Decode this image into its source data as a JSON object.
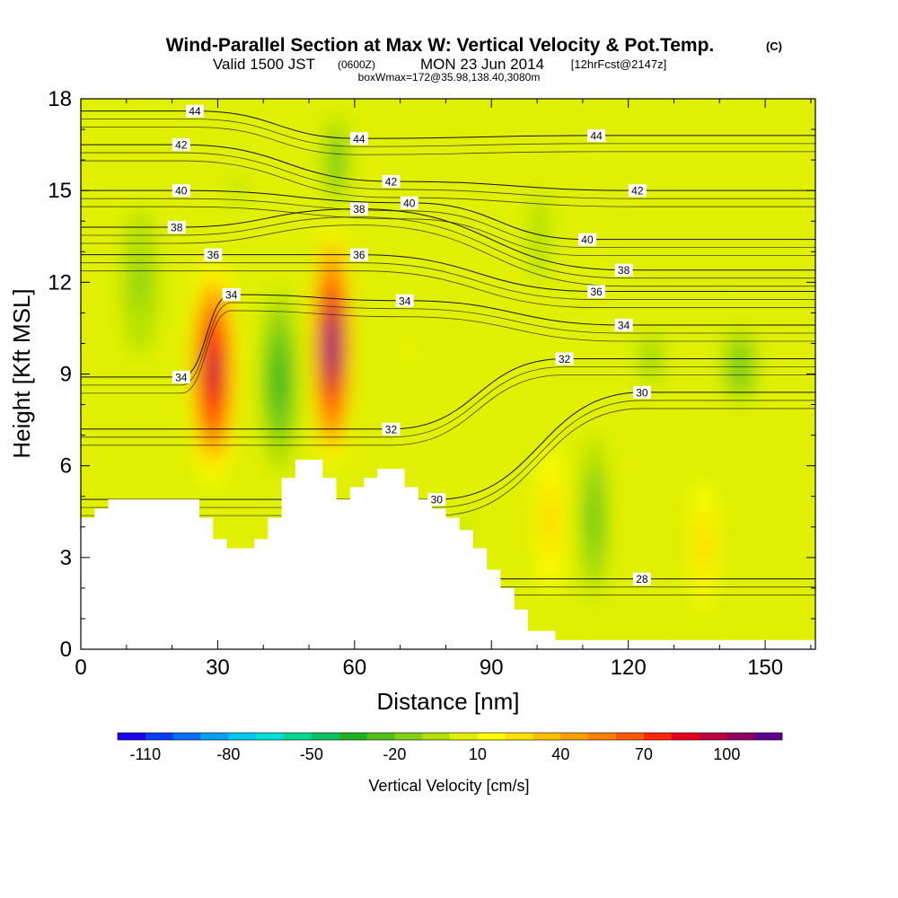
{
  "chart_data": {
    "type": "contour",
    "title": "Wind-Parallel Section at Max W: Vertical Velocity & Pot.Temp.",
    "title_suffix": "(C)",
    "subtitle_valid": "Valid 1500 JST",
    "subtitle_utc": "(0600Z)",
    "subtitle_date": "MON 23 Jun 2014",
    "subtitle_fcst": "[12hrFcst@2147z]",
    "subtitle_box": "boxWmax=172@35.98,138.40,3080m",
    "xlabel": "Distance [nm]",
    "ylabel": "Height [Kft MSL]",
    "xlim": [
      0,
      161
    ],
    "ylim": [
      0,
      18
    ],
    "x_ticks": [
      0,
      30,
      60,
      90,
      120,
      150
    ],
    "y_ticks": [
      0,
      3,
      6,
      9,
      12,
      15,
      18
    ],
    "colorbar": {
      "label": "Vertical Velocity [cm/s]",
      "tick_labels": [
        "-110",
        "-80",
        "-50",
        "-20",
        "10",
        "40",
        "70",
        "100"
      ],
      "tick_values": [
        -110,
        -80,
        -50,
        -20,
        10,
        40,
        70,
        100
      ],
      "min": -120,
      "step": 10,
      "colors": [
        "#1c00f0",
        "#0a3cf5",
        "#0a6ef5",
        "#04a0f0",
        "#00c8f0",
        "#00e0d8",
        "#00d890",
        "#10c060",
        "#20b020",
        "#50c018",
        "#80d018",
        "#b0e000",
        "#e0f000",
        "#ffff00",
        "#ffe000",
        "#ffc000",
        "#ffa000",
        "#ff8000",
        "#ff5800",
        "#ff2800",
        "#e80020",
        "#c00040",
        "#900060",
        "#600090"
      ]
    },
    "w_cells": [
      {
        "x": [
          23,
          35
        ],
        "y": [
          5.0,
          13.2
        ],
        "w": 95
      },
      {
        "x": [
          50,
          60
        ],
        "y": [
          5.6,
          14.2
        ],
        "w": 115
      },
      {
        "x": [
          38,
          49
        ],
        "y": [
          5.0,
          12.6
        ],
        "w": -40
      },
      {
        "x": [
          6,
          20
        ],
        "y": [
          8.0,
          16.0
        ],
        "w": -12
      },
      {
        "x": [
          29,
          40
        ],
        "y": [
          12.0,
          18.0
        ],
        "w": -8
      },
      {
        "x": [
          52,
          60
        ],
        "y": [
          14.0,
          18.0
        ],
        "w": -22
      },
      {
        "x": [
          99,
          107
        ],
        "y": [
          1.0,
          7.5
        ],
        "w": 38
      },
      {
        "x": [
          108,
          117
        ],
        "y": [
          0.6,
          8.0
        ],
        "w": -28
      },
      {
        "x": [
          133,
          140
        ],
        "y": [
          0.6,
          6.2
        ],
        "w": 34
      },
      {
        "x": [
          120,
          130
        ],
        "y": [
          8.0,
          11.0
        ],
        "w": -12
      },
      {
        "x": [
          139,
          150
        ],
        "y": [
          7.5,
          11.0
        ],
        "w": -20
      },
      {
        "x": [
          97,
          104
        ],
        "y": [
          11.0,
          16.0
        ],
        "w": -10
      },
      {
        "x": [
          69,
          76
        ],
        "y": [
          8.0,
          11.5
        ],
        "w": 16
      },
      {
        "x": [
          142,
          156
        ],
        "y": [
          15.0,
          18.0
        ],
        "w": 8
      },
      {
        "x": [
          77,
          90
        ],
        "y": [
          1.8,
          6.0
        ],
        "w": -6
      }
    ],
    "theta_labels": [
      {
        "value": 44,
        "x": 25,
        "y": 17.6
      },
      {
        "value": 44,
        "x": 61,
        "y": 16.7
      },
      {
        "value": 44,
        "x": 113,
        "y": 16.8
      },
      {
        "value": 42,
        "x": 22,
        "y": 16.5
      },
      {
        "value": 42,
        "x": 68,
        "y": 15.3
      },
      {
        "value": 42,
        "x": 122,
        "y": 15.0
      },
      {
        "value": 40,
        "x": 22,
        "y": 15.0
      },
      {
        "value": 40,
        "x": 72,
        "y": 14.6
      },
      {
        "value": 40,
        "x": 111,
        "y": 13.4
      },
      {
        "value": 38,
        "x": 21,
        "y": 13.8
      },
      {
        "value": 38,
        "x": 61,
        "y": 14.4
      },
      {
        "value": 38,
        "x": 119,
        "y": 12.4
      },
      {
        "value": 36,
        "x": 29,
        "y": 12.9
      },
      {
        "value": 36,
        "x": 61,
        "y": 12.9
      },
      {
        "value": 36,
        "x": 113,
        "y": 11.7
      },
      {
        "value": 34,
        "x": 33,
        "y": 11.6
      },
      {
        "value": 34,
        "x": 71,
        "y": 11.4
      },
      {
        "value": 34,
        "x": 119,
        "y": 10.6
      },
      {
        "value": 34,
        "x": 22,
        "y": 8.9
      },
      {
        "value": 32,
        "x": 106,
        "y": 9.5
      },
      {
        "value": 32,
        "x": 68,
        "y": 7.2
      },
      {
        "value": 30,
        "x": 123,
        "y": 8.4
      },
      {
        "value": 30,
        "x": 78,
        "y": 4.9
      },
      {
        "value": 28,
        "x": 123,
        "y": 2.3
      }
    ],
    "terrain": [
      [
        0,
        4.3
      ],
      [
        3,
        4.3
      ],
      [
        3,
        4.6
      ],
      [
        6,
        4.6
      ],
      [
        6,
        4.9
      ],
      [
        26,
        4.9
      ],
      [
        26,
        4.3
      ],
      [
        29,
        4.3
      ],
      [
        29,
        3.6
      ],
      [
        32,
        3.6
      ],
      [
        32,
        3.3
      ],
      [
        38,
        3.3
      ],
      [
        38,
        3.6
      ],
      [
        41,
        3.6
      ],
      [
        41,
        4.3
      ],
      [
        44,
        4.3
      ],
      [
        44,
        5.6
      ],
      [
        47,
        5.6
      ],
      [
        47,
        6.2
      ],
      [
        53,
        6.2
      ],
      [
        53,
        5.6
      ],
      [
        56,
        5.6
      ],
      [
        56,
        4.9
      ],
      [
        59,
        4.9
      ],
      [
        59,
        5.3
      ],
      [
        62,
        5.3
      ],
      [
        62,
        5.6
      ],
      [
        65,
        5.6
      ],
      [
        65,
        5.9
      ],
      [
        71,
        5.9
      ],
      [
        71,
        5.3
      ],
      [
        74,
        5.3
      ],
      [
        74,
        4.9
      ],
      [
        77,
        4.9
      ],
      [
        77,
        4.6
      ],
      [
        80,
        4.6
      ],
      [
        80,
        4.3
      ],
      [
        83,
        4.3
      ],
      [
        83,
        3.9
      ],
      [
        86,
        3.9
      ],
      [
        86,
        3.3
      ],
      [
        89,
        3.3
      ],
      [
        89,
        2.6
      ],
      [
        92,
        2.6
      ],
      [
        92,
        2.0
      ],
      [
        95,
        2.0
      ],
      [
        95,
        1.3
      ],
      [
        98,
        1.3
      ],
      [
        98,
        0.6
      ],
      [
        104,
        0.6
      ],
      [
        104,
        0.3
      ],
      [
        161,
        0.3
      ]
    ]
  }
}
